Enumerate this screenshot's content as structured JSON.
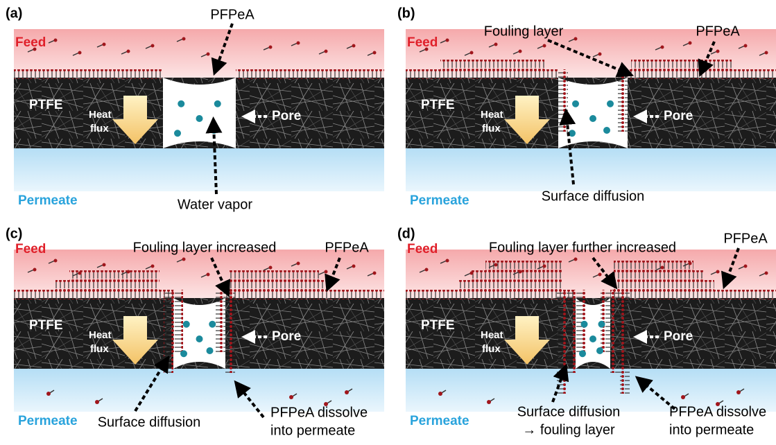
{
  "panels": [
    {
      "label": "(a)",
      "feed": "Feed",
      "membrane": "PTFE",
      "heat_flux": [
        "Heat",
        "flux"
      ],
      "pore": "Pore",
      "permeate": "Permeate",
      "annotations": [
        [
          "PFPeA"
        ],
        [
          "Water vapor"
        ]
      ]
    },
    {
      "label": "(b)",
      "feed": "Feed",
      "membrane": "PTFE",
      "heat_flux": [
        "Heat",
        "flux"
      ],
      "pore": "Pore",
      "permeate": "Permeate",
      "annotations": [
        [
          "Fouling layer"
        ],
        [
          "PFPeA"
        ],
        [
          "Surface diffusion"
        ]
      ]
    },
    {
      "label": "(c)",
      "feed": "Feed",
      "membrane": "PTFE",
      "heat_flux": [
        "Heat",
        "flux"
      ],
      "pore": "Pore",
      "permeate": "Permeate",
      "annotations": [
        [
          "Fouling layer increased"
        ],
        [
          "PFPeA"
        ],
        [
          "Surface diffusion"
        ],
        [
          "PFPeA dissolve",
          "into permeate"
        ]
      ]
    },
    {
      "label": "(d)",
      "feed": "Feed",
      "membrane": "PTFE",
      "heat_flux": [
        "Heat",
        "flux"
      ],
      "pore": "Pore",
      "permeate": "Permeate",
      "annotations": [
        [
          "Fouling layer further increased"
        ],
        [
          "PFPeA"
        ],
        [
          "Surface diffusion",
          "→ fouling layer"
        ],
        [
          "PFPeA dissolve",
          "into permeate"
        ]
      ]
    }
  ]
}
